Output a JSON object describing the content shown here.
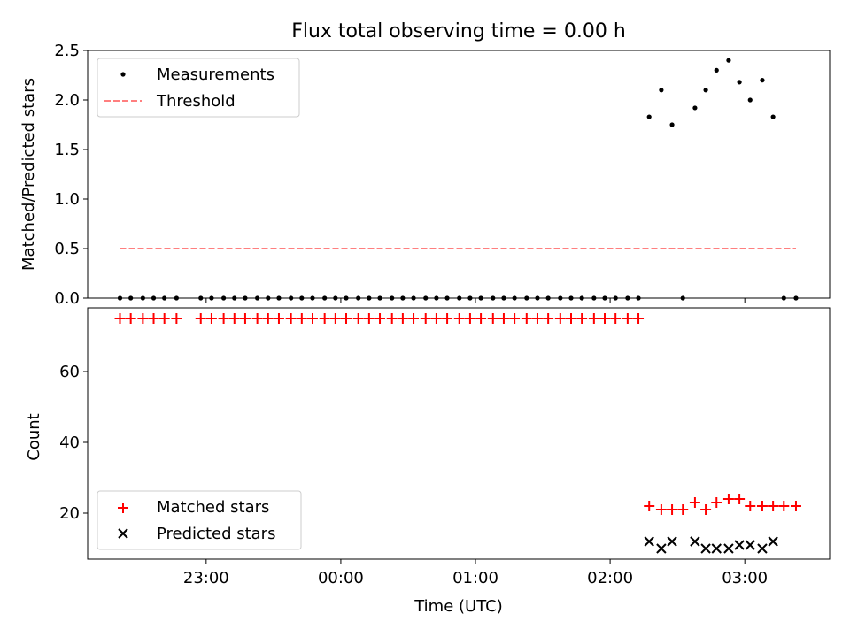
{
  "chart_data": [
    {
      "type": "scatter",
      "title": "Flux total observing time = 0.00 h",
      "xlabel": "",
      "ylabel": "Matched/Predicted stars",
      "ylim": [
        0,
        2.5
      ],
      "yticks": [
        "0.0",
        "0.5",
        "1.0",
        "1.5",
        "2.0",
        "2.5"
      ],
      "xlim_hours": [
        -1.88,
        3.63
      ],
      "legend": {
        "placement": "top-left",
        "entries": [
          "Measurements",
          "Threshold"
        ]
      },
      "series": [
        {
          "name": "Measurements",
          "color": "#000000",
          "marker": "dot",
          "x": [
            -1.64,
            -1.56,
            -1.47,
            -1.39,
            -1.31,
            -1.22,
            -1.04,
            -0.96,
            -0.87,
            -0.79,
            -0.71,
            -0.62,
            -0.54,
            -0.46,
            -0.37,
            -0.29,
            -0.21,
            -0.12,
            -0.04,
            0.04,
            0.13,
            0.21,
            0.29,
            0.38,
            0.46,
            0.54,
            0.63,
            0.71,
            0.79,
            0.88,
            0.96,
            1.04,
            1.13,
            1.21,
            1.29,
            1.38,
            1.46,
            1.54,
            1.63,
            1.71,
            1.79,
            1.88,
            1.96,
            2.04,
            2.13,
            2.21,
            2.29,
            2.38,
            2.46,
            2.54,
            2.63,
            2.71,
            2.79,
            2.88,
            2.96,
            3.04,
            3.13,
            3.21,
            3.29,
            3.38
          ],
          "y": [
            0,
            0,
            0,
            0,
            0,
            0,
            0,
            0,
            0,
            0,
            0,
            0,
            0,
            0,
            0,
            0,
            0,
            0,
            0,
            0,
            0,
            0,
            0,
            0,
            0,
            0,
            0,
            0,
            0,
            0,
            0,
            0,
            0,
            0,
            0,
            0,
            0,
            0,
            0,
            0,
            0,
            0,
            0,
            0,
            0,
            0,
            1.83,
            2.1,
            1.75,
            0,
            1.92,
            2.1,
            2.3,
            2.4,
            2.18,
            2.0,
            2.2,
            1.83,
            0,
            0
          ]
        },
        {
          "name": "Threshold",
          "color": "#ff7f7f",
          "style": "dashed",
          "x": [
            -1.64,
            3.38
          ],
          "y": [
            0.5,
            0.5
          ]
        }
      ]
    },
    {
      "type": "scatter",
      "xlabel": "Time (UTC)",
      "ylabel": "Count",
      "ylim": [
        7,
        78
      ],
      "yticks": [
        "20",
        "40",
        "60"
      ],
      "xticks": [
        "23:00",
        "00:00",
        "01:00",
        "02:00",
        "03:00"
      ],
      "legend": {
        "placement": "lower-left",
        "entries": [
          "Matched stars",
          "Predicted stars"
        ]
      },
      "series": [
        {
          "name": "Matched stars",
          "color": "#ff0000",
          "marker": "plus",
          "x": [
            -1.64,
            -1.56,
            -1.47,
            -1.39,
            -1.31,
            -1.22,
            -1.04,
            -0.96,
            -0.87,
            -0.79,
            -0.71,
            -0.62,
            -0.54,
            -0.46,
            -0.37,
            -0.29,
            -0.21,
            -0.12,
            -0.04,
            0.04,
            0.13,
            0.21,
            0.29,
            0.38,
            0.46,
            0.54,
            0.63,
            0.71,
            0.79,
            0.88,
            0.96,
            1.04,
            1.13,
            1.21,
            1.29,
            1.38,
            1.46,
            1.54,
            1.63,
            1.71,
            1.79,
            1.88,
            1.96,
            2.04,
            2.13,
            2.21,
            2.29,
            2.38,
            2.46,
            2.54,
            2.63,
            2.71,
            2.79,
            2.88,
            2.96,
            3.04,
            3.13,
            3.21,
            3.29,
            3.38
          ],
          "y": [
            75,
            75,
            75,
            75,
            75,
            75,
            75,
            75,
            75,
            75,
            75,
            75,
            75,
            75,
            75,
            75,
            75,
            75,
            75,
            75,
            75,
            75,
            75,
            75,
            75,
            75,
            75,
            75,
            75,
            75,
            75,
            75,
            75,
            75,
            75,
            75,
            75,
            75,
            75,
            75,
            75,
            75,
            75,
            75,
            75,
            75,
            22,
            21,
            21,
            21,
            23,
            21,
            23,
            24,
            24,
            22,
            22,
            22,
            22,
            22
          ]
        },
        {
          "name": "Predicted stars",
          "color": "#000000",
          "marker": "x",
          "x": [
            2.29,
            2.38,
            2.46,
            2.63,
            2.71,
            2.79,
            2.88,
            2.96,
            3.04,
            3.13,
            3.21
          ],
          "y": [
            12,
            10,
            12,
            12,
            10,
            10,
            10,
            11,
            11,
            10,
            12
          ]
        }
      ]
    }
  ]
}
